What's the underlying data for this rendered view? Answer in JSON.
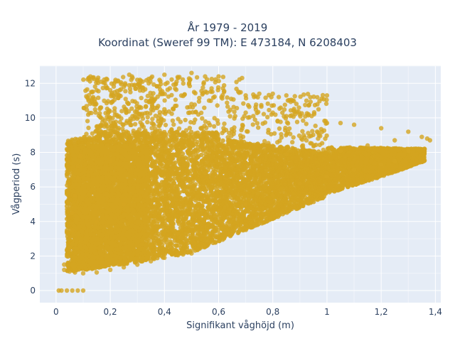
{
  "chart_data": {
    "type": "scatter",
    "title_line_1": "År 1979 - 2019",
    "title_line_2": "Koordinat (Sweref 99 TM): E 473184, N 6208403",
    "xlabel": "Signifikant våghöjd (m)",
    "ylabel": "Vågperiod (s)",
    "xlim": [
      -0.06,
      1.42
    ],
    "ylim": [
      -0.7,
      13.0
    ],
    "x_ticks": [
      0,
      0.2,
      0.4,
      0.6,
      0.8,
      1.0,
      1.2,
      1.4
    ],
    "x_tick_labels": [
      "0",
      "0,2",
      "0,4",
      "0,6",
      "0,8",
      "1",
      "1,2",
      "1,4"
    ],
    "y_ticks": [
      0,
      2,
      4,
      6,
      8,
      10,
      12
    ],
    "y_tick_labels": [
      "0",
      "2",
      "4",
      "6",
      "8",
      "10",
      "12"
    ],
    "grid": true,
    "marker_color": "#D4A520",
    "background_color": "#E5ECF6",
    "point_cloud_note": "dense cloud of many thousand points; summarized by envelope samples below",
    "series": [
      {
        "points": [
          [
            0.01,
            0.0
          ],
          [
            0.02,
            0.0
          ],
          [
            0.04,
            0.0
          ],
          [
            0.06,
            0.0
          ],
          [
            0.08,
            0.0
          ],
          [
            0.1,
            0.0
          ],
          [
            0.03,
            1.2
          ],
          [
            0.05,
            1.1
          ],
          [
            0.07,
            1.05
          ],
          [
            0.1,
            1.0
          ],
          [
            0.15,
            1.05
          ],
          [
            0.2,
            1.2
          ],
          [
            0.25,
            1.35
          ],
          [
            0.3,
            1.5
          ],
          [
            0.35,
            1.7
          ],
          [
            0.4,
            1.9
          ],
          [
            0.45,
            2.05
          ],
          [
            0.5,
            2.15
          ],
          [
            0.03,
            1.5
          ],
          [
            0.04,
            2.0
          ],
          [
            0.05,
            2.5
          ],
          [
            0.06,
            3.5
          ],
          [
            0.06,
            4.5
          ],
          [
            0.07,
            5.5
          ],
          [
            0.08,
            6.5
          ],
          [
            0.08,
            7.2
          ],
          [
            0.09,
            7.8
          ],
          [
            0.12,
            8.5
          ],
          [
            0.15,
            9.5
          ],
          [
            0.12,
            11.0
          ],
          [
            0.13,
            11.5
          ],
          [
            0.15,
            11.6
          ],
          [
            0.2,
            11.6
          ],
          [
            0.25,
            11.8
          ],
          [
            0.27,
            12.5
          ],
          [
            0.28,
            12.4
          ],
          [
            0.3,
            12.2
          ],
          [
            0.35,
            12.3
          ],
          [
            0.4,
            12.5
          ],
          [
            0.45,
            12.3
          ],
          [
            0.5,
            12.6
          ],
          [
            0.55,
            12.4
          ],
          [
            0.6,
            12.4
          ],
          [
            0.62,
            11.5
          ],
          [
            0.7,
            11.3
          ],
          [
            0.75,
            11.4
          ],
          [
            0.8,
            11.4
          ],
          [
            0.85,
            11.3
          ],
          [
            1.0,
            11.3
          ],
          [
            0.7,
            10.3
          ],
          [
            0.8,
            10.3
          ],
          [
            0.9,
            10.2
          ],
          [
            1.0,
            9.7
          ],
          [
            1.05,
            9.7
          ],
          [
            1.1,
            9.6
          ],
          [
            1.2,
            9.4
          ],
          [
            1.3,
            9.2
          ],
          [
            1.35,
            8.9
          ],
          [
            1.37,
            8.8
          ],
          [
            1.38,
            8.7
          ],
          [
            1.3,
            8.1
          ],
          [
            1.25,
            7.5
          ],
          [
            1.2,
            7.3
          ],
          [
            1.1,
            7.0
          ],
          [
            1.0,
            6.6
          ],
          [
            0.9,
            6.2
          ],
          [
            0.8,
            5.5
          ],
          [
            0.7,
            5.0
          ],
          [
            0.6,
            4.6
          ],
          [
            0.55,
            4.3
          ],
          [
            0.5,
            3.8
          ],
          [
            0.45,
            3.3
          ],
          [
            0.4,
            2.9
          ],
          [
            0.35,
            2.6
          ],
          [
            0.15,
            4.0
          ],
          [
            0.25,
            5.0
          ],
          [
            0.35,
            6.0
          ],
          [
            0.45,
            6.5
          ],
          [
            0.55,
            6.8
          ],
          [
            0.65,
            7.2
          ],
          [
            0.75,
            7.5
          ],
          [
            0.85,
            7.9
          ],
          [
            0.95,
            8.0
          ],
          [
            1.05,
            8.1
          ],
          [
            1.15,
            8.4
          ],
          [
            1.25,
            8.7
          ],
          [
            0.2,
            7.5
          ],
          [
            0.3,
            8.5
          ],
          [
            0.4,
            9.0
          ],
          [
            0.5,
            9.0
          ],
          [
            0.6,
            8.8
          ],
          [
            0.3,
            10.5
          ],
          [
            0.4,
            10.5
          ],
          [
            0.5,
            10.8
          ],
          [
            0.2,
            10.0
          ]
        ]
      }
    ]
  }
}
